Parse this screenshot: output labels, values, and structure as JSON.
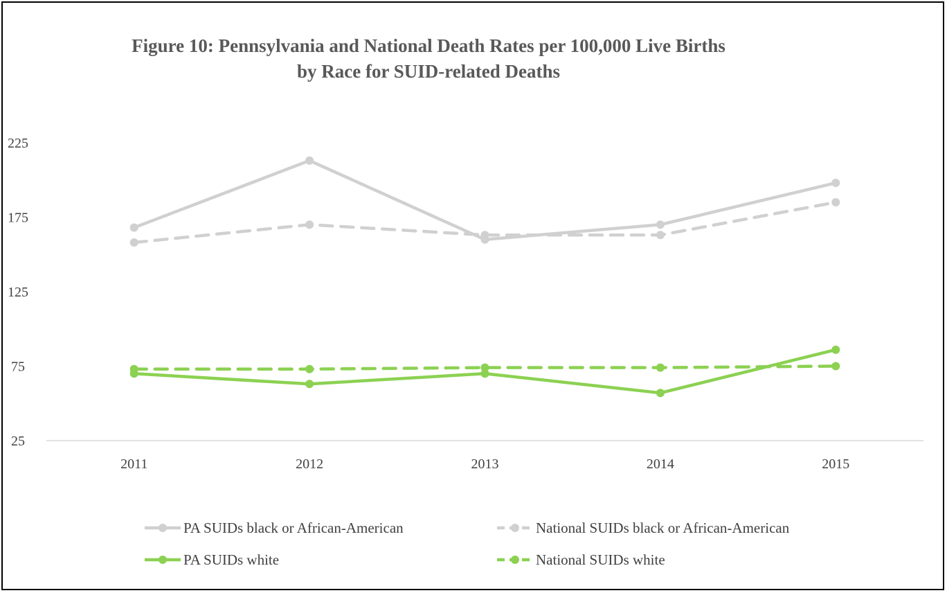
{
  "chart_data": {
    "type": "line",
    "title_lines": [
      "Figure 10:  Pennsylvania and National Death Rates per 100,000 Live Births",
      "by Race for SUID-related Deaths"
    ],
    "categories": [
      "2011",
      "2012",
      "2013",
      "2014",
      "2015"
    ],
    "y_ticks": [
      "225",
      "175",
      "125",
      "75",
      "25"
    ],
    "ylim": [
      25,
      225
    ],
    "grid": "x-axis baseline only",
    "legend_position": "bottom",
    "series": [
      {
        "name": "PA SUIDs black or African-American",
        "values": [
          168,
          213,
          160,
          170,
          198
        ],
        "color": "#d0d0d0",
        "dashed": false
      },
      {
        "name": "National SUIDs black or African-American",
        "values": [
          158,
          170,
          163,
          163,
          185
        ],
        "color": "#d0d0d0",
        "dashed": true
      },
      {
        "name": "PA SUIDs white",
        "values": [
          70,
          63,
          70,
          57,
          86
        ],
        "color": "#8cd152",
        "dashed": false
      },
      {
        "name": "National SUIDs white",
        "values": [
          73,
          73,
          74,
          74,
          75
        ],
        "color": "#8cd152",
        "dashed": true
      }
    ]
  }
}
